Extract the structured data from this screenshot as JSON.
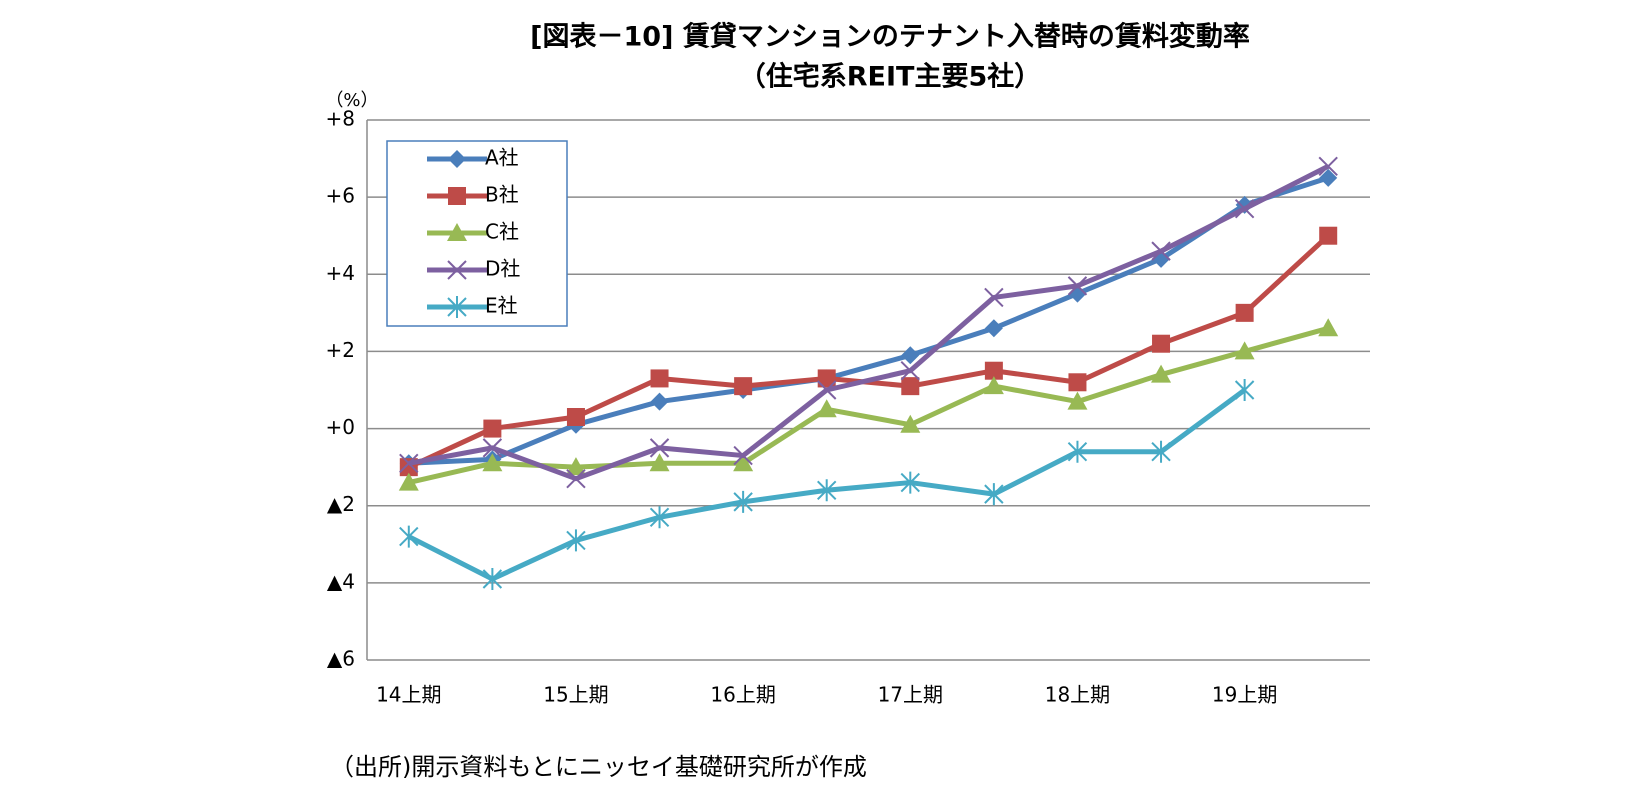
{
  "chart_data": {
    "type": "line",
    "title": "[図表－10] 賃貸マンションのテナント入替時の賃料変動率",
    "subtitle": "（住宅系REIT主要5社）",
    "y_axis_label": "（%）",
    "source": "（出所)開示資料もとにニッセイ基礎研究所が作成",
    "categories": [
      "14上期",
      null,
      "15上期",
      null,
      "16上期",
      null,
      "17上期",
      null,
      "18上期",
      null,
      "19上期",
      null
    ],
    "series": [
      {
        "name": "A社",
        "color": "#4a7ebb",
        "marker": "diamond",
        "values": [
          -0.9,
          -0.8,
          0.1,
          0.7,
          1.0,
          1.3,
          1.9,
          2.6,
          3.5,
          4.4,
          5.8,
          6.5
        ]
      },
      {
        "name": "B社",
        "color": "#be4b48",
        "marker": "square",
        "values": [
          -1.0,
          0.0,
          0.3,
          1.3,
          1.1,
          1.3,
          1.1,
          1.5,
          1.2,
          2.2,
          3.0,
          5.0
        ]
      },
      {
        "name": "C社",
        "color": "#98b954",
        "marker": "triangle",
        "values": [
          -1.4,
          -0.9,
          -1.0,
          -0.9,
          -0.9,
          0.5,
          0.1,
          1.1,
          0.7,
          1.4,
          2.0,
          2.6
        ]
      },
      {
        "name": "D社",
        "color": "#7d60a0",
        "marker": "x",
        "values": [
          -0.9,
          -0.5,
          -1.3,
          -0.5,
          -0.7,
          1.0,
          1.5,
          3.4,
          3.7,
          4.6,
          5.7,
          6.8
        ]
      },
      {
        "name": "E社",
        "color": "#46aac5",
        "marker": "asterisk",
        "values": [
          -2.8,
          -3.9,
          -2.9,
          -2.3,
          -1.9,
          -1.6,
          -1.4,
          -1.7,
          -0.6,
          -0.6,
          1.0,
          null
        ]
      }
    ],
    "ylim": [
      -6,
      8
    ],
    "yticks": [
      {
        "value": -6,
        "label": "▲6"
      },
      {
        "value": -4,
        "label": "▲4"
      },
      {
        "value": -2,
        "label": "▲2"
      },
      {
        "value": 0,
        "label": "+0"
      },
      {
        "value": 2,
        "label": "+2"
      },
      {
        "value": 4,
        "label": "+4"
      },
      {
        "value": 6,
        "label": "+6"
      },
      {
        "value": 8,
        "label": "+8"
      }
    ],
    "grid": true,
    "legend": "upper-left"
  }
}
